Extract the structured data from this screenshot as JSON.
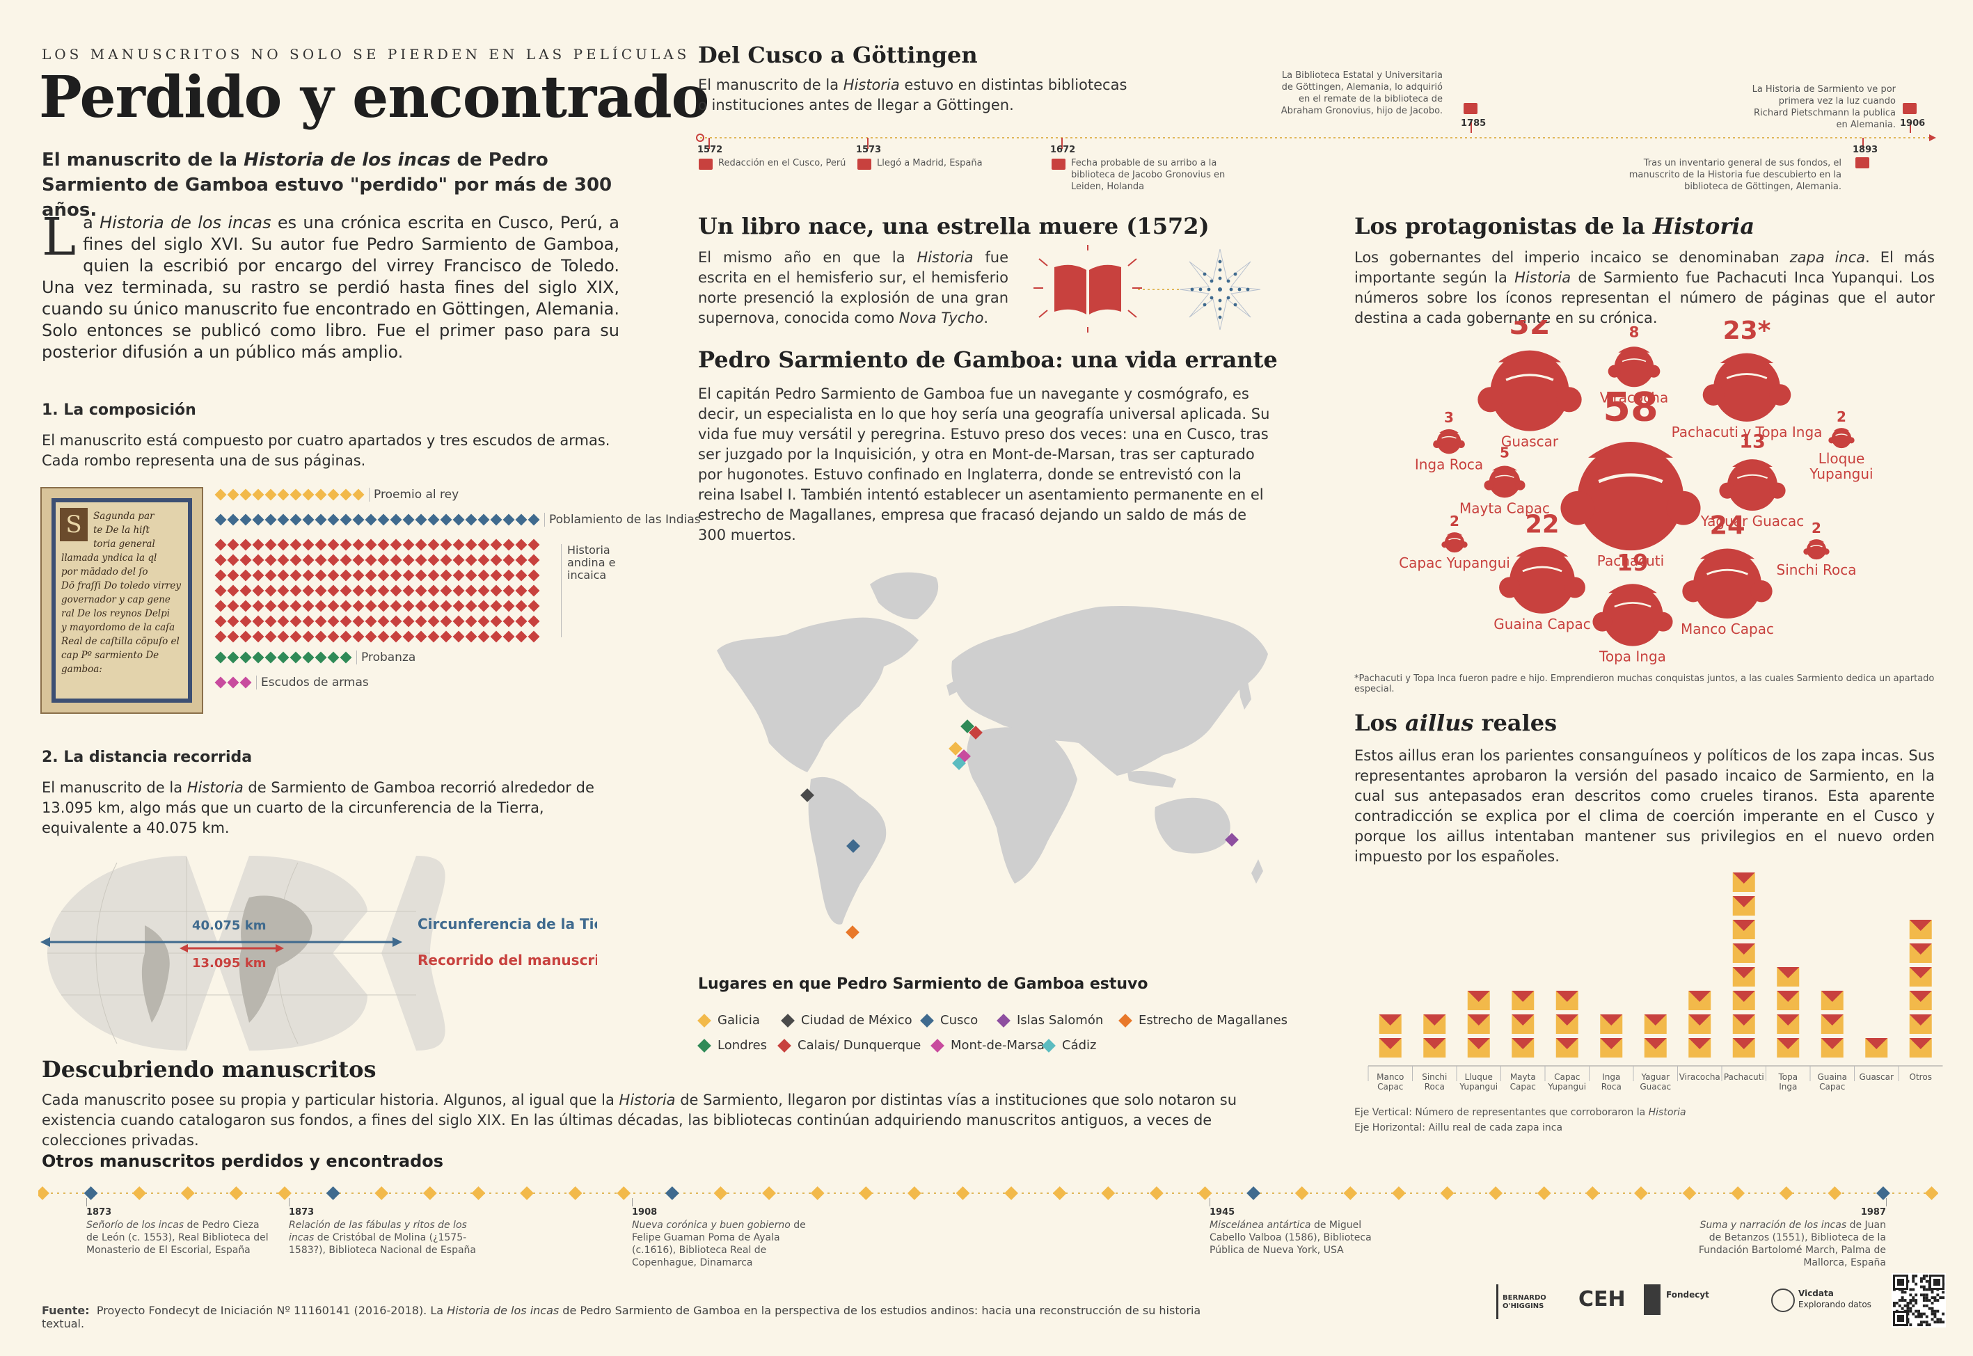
{
  "header": {
    "kicker": "LOS MANUSCRITOS NO SOLO SE PIERDEN EN LAS PELÍCULAS",
    "title": "Perdido y encontrado",
    "subtitle_a": "El manuscrito de la ",
    "subtitle_em": "Historia de los incas",
    "subtitle_b": " de Pedro Sarmiento de Gamboa estuvo \"perdido\" por más de 300 años."
  },
  "intro": {
    "dropcap": "L",
    "a": "a ",
    "em": "Historia de los incas",
    "b": " es una crónica escrita en Cusco, Perú, a fines del siglo XVI. Su autor fue Pedro Sarmiento de Gamboa, quien la escribió por encargo del virrey Francisco de Toledo. Una vez terminada, su rastro se perdió hasta fines del siglo XIX, cuando su único manuscrito fue encontrado en Göttingen, Alemania. Solo entonces se publicó como libro. Fue el primer paso para su posterior difusión a un público más amplio."
  },
  "composition": {
    "heading": "1. La composición",
    "text": "El manuscrito está compuesto por cuatro apartados y tres escudos de armas. Cada rombo representa una de sus páginas.",
    "manuscript_text": [
      "Sagunda par",
      "te De la hiſt",
      "toria general",
      "llamada yndica la ql",
      "por mādado del ſo",
      "Dō fraſſi Do toledo virrey",
      "governador y cap gene",
      "ral De los reynos Delpi",
      "y mayordomo de la caſa",
      "Real de caſtilla cōpuſo el",
      "cap Pº sarmiento De",
      "gamboa:"
    ],
    "rows": [
      {
        "label": "Proemio al rey",
        "count": 12,
        "color": "#f2b94a",
        "lines": 1
      },
      {
        "label": "Poblamiento de las Indias",
        "count": 26,
        "color": "#3f6a8e",
        "lines": 1
      },
      {
        "label": "Historia andina e incaica",
        "count": 184,
        "color": "#c8413e",
        "lines": 7
      },
      {
        "label": "Probanza",
        "count": 11,
        "color": "#2f8a57",
        "lines": 1
      },
      {
        "label": "Escudos de armas",
        "count": 3,
        "color": "#c84b9e",
        "lines": 1
      }
    ]
  },
  "distance": {
    "heading": "2. La distancia recorrida",
    "text_a": "El manuscrito de la ",
    "text_em": "Historia",
    "text_b": " de Sarmiento de Gamboa recorrió alrededor de 13.095 km, algo más que un cuarto de la circunferencia de la Tierra, equivalente a 40.075 km.",
    "earth_km": "40.075 km",
    "ms_km": "13.095 km",
    "earth_label": "Circunferencia de la Tierra",
    "ms_label": "Recorrido del manuscrito",
    "earth_color": "#3f6a8e",
    "ms_color": "#c8413e"
  },
  "cusco": {
    "title": "Del Cusco a Göttingen",
    "text_a": "El manuscrito de la ",
    "text_em": "Historia",
    "text_b": " estuvo en distintas bibliotecas o instituciones antes de llegar a Göttingen.",
    "events": [
      {
        "year": "1572",
        "text": "Redacción en el Cusco, Perú"
      },
      {
        "year": "1573",
        "text": "Llegó a Madrid, España"
      },
      {
        "year": "1672",
        "text": "Fecha probable de su arribo a la biblioteca de Jacobo Gronovius en Leiden, Holanda"
      },
      {
        "year": "1785",
        "text": "La Biblioteca Estatal y Universitaria de Göttingen, Alemania, lo adquirió en el remate de la biblioteca de Abraham Gronovius, hijo de Jacobo."
      },
      {
        "year": "1893",
        "text": "Tras un inventario general de sus fondos, el manuscrito de la Historia fue descubierto en la biblioteca de Göttingen, Alemania."
      },
      {
        "year": "1906",
        "text": "La Historia de Sarmiento ve por primera vez la luz cuando Richard Pietschmann la publica en Alemania."
      }
    ]
  },
  "star": {
    "title": "Un libro nace, una estrella muere (1572)",
    "text_a": "El mismo año en que la ",
    "text_em": "Historia",
    "text_b": " fue escrita en el hemisferio sur, el hemisferio norte presenció la explosión de una gran supernova, conocida como ",
    "text_em2": "Nova Tycho",
    "text_c": "."
  },
  "life": {
    "title": "Pedro Sarmiento de Gamboa: una vida errante",
    "text": "El capitán Pedro Sarmiento de Gamboa fue un navegante y cosmógrafo, es decir, un especialista en lo que hoy sería una geografía universal aplicada. Su vida fue muy versátil y peregrina. Estuvo preso dos veces: una en Cusco, tras ser juzgado por la Inquisición, y otra en Mont-de-Marsan, tras ser capturado por hugonotes. Estuvo confinado en Inglaterra, donde se entrevistó con la reina Isabel I. También intentó establecer un asentamiento permanente en el estrecho de Magallanes, empresa que fracasó dejando un saldo de más de 300 muertos.",
    "legend_title": "Lugares en que Pedro Sarmiento de Gamboa estuvo",
    "places": [
      {
        "name": "Galicia",
        "color": "#f2b94a"
      },
      {
        "name": "Ciudad de México",
        "color": "#4a4a4a"
      },
      {
        "name": "Cusco",
        "color": "#3f6a8e"
      },
      {
        "name": "Islas Salomón",
        "color": "#8e4fa0"
      },
      {
        "name": "Estrecho de Magallanes",
        "color": "#e8782a"
      },
      {
        "name": "Londres",
        "color": "#2f8a57"
      },
      {
        "name": "Calais/ Dunquerque",
        "color": "#c8413e"
      },
      {
        "name": "Mont-de-Marsan",
        "color": "#c84b9e"
      },
      {
        "name": "Cádiz",
        "color": "#5bbcc0"
      }
    ]
  },
  "protagonists": {
    "title_a": "Los protagonistas de la ",
    "title_em": "Historia",
    "text_a": "Los gobernantes del imperio incaico se denominaban ",
    "text_em": "zapa inca",
    "text_b": ". El más importante según la ",
    "text_em2": "Historia",
    "text_c": " de Sarmiento fue Pachacuti Inca Yupanqui. Los números sobre los íconos representan el número de páginas que el autor destina a cada gobernante en su crónica.",
    "rulers": [
      {
        "name": "Guascar",
        "pages": "32"
      },
      {
        "name": "Viracocha",
        "pages": "8"
      },
      {
        "name": "Pachacuti y Topa Inga",
        "pages": "23*"
      },
      {
        "name": "Inga Roca",
        "pages": "3"
      },
      {
        "name": "Pachacuti",
        "pages": "58"
      },
      {
        "name": "Lloque Yupangui",
        "pages": "2"
      },
      {
        "name": "Mayta Capac",
        "pages": "5"
      },
      {
        "name": "Yaguar Guacac",
        "pages": "13"
      },
      {
        "name": "Capac Yupangui",
        "pages": "2"
      },
      {
        "name": "Guaina Capac",
        "pages": "22"
      },
      {
        "name": "Topa Inga",
        "pages": "19"
      },
      {
        "name": "Manco Capac",
        "pages": "24"
      },
      {
        "name": "Sinchi Roca",
        "pages": "2"
      }
    ],
    "note": "*Pachacuti y Topa Inca fueron padre e hijo. Emprendieron muchas conquistas juntos, a las cuales Sarmiento dedica un apartado especial."
  },
  "aillus": {
    "title_a": "Los ",
    "title_em": "aillus",
    "title_b": " reales",
    "text": "Estos aillus eran los parientes consanguíneos y políticos de los zapa incas. Sus representantes aprobaron la versión del pasado incaico de Sarmiento, en la cual sus antepasados eran descritos como crueles tiranos. Esta aparente contradicción se explica por el clima de coerción imperante en el Cusco y porque los aillus intentaban mantener sus privilegios en el nuevo orden impuesto por los españoles.",
    "axis_v_a": "Eje Vertical: Número de representantes que corroboraron la ",
    "axis_v_em": "Historia",
    "axis_h": "Eje Horizontal: Aillu real de cada zapa inca"
  },
  "chart_data": {
    "type": "bar",
    "categories": [
      "Manco Capac",
      "Sinchi Roca",
      "Lluque Yupangui",
      "Mayta Capac",
      "Capac Yupangui",
      "Inga Roca",
      "Yaguar Guacac",
      "Viracocha",
      "Pachacuti",
      "Topa Inga",
      "Guaina Capac",
      "Guascar",
      "Otros"
    ],
    "values": [
      2,
      2,
      3,
      3,
      3,
      2,
      2,
      3,
      8,
      4,
      3,
      1,
      6
    ],
    "xlabel": "Aillu real de cada zapa inca",
    "ylabel": "Número de representantes que corroboraron la Historia"
  },
  "discover": {
    "title": "Descubriendo manuscritos",
    "text_a": "Cada manuscrito posee su propia y particular historia. Algunos, al igual que la ",
    "text_em": "Historia",
    "text_b": " de Sarmiento, llegaron por distintas vías a instituciones que solo notaron su existencia cuando catalogaron sus fondos, a fines del siglo XIX. En las últimas décadas, las bibliotecas continúan adquiriendo manuscritos antiguos, a veces de colecciones privadas.",
    "others_title": "Otros manuscritos perdidos y encontrados",
    "items": [
      {
        "year": "1873",
        "title": "Señorío de los incas",
        "rest": " de Pedro Cieza de León (c. 1553), Real Biblioteca del Monasterio de El Escorial, España"
      },
      {
        "year": "1873",
        "title": "Relación de las fábulas y ritos de los incas",
        "rest": " de Cristóbal de Molina (¿1575-1583?), Biblioteca Nacional de España"
      },
      {
        "year": "1908",
        "title": "Nueva corónica y buen gobierno",
        "rest": " de Felipe Guaman Poma de Ayala (c.1616), Biblioteca Real de Copenhague, Dinamarca"
      },
      {
        "year": "1945",
        "title": "Miscelánea antártica",
        "rest": " de Miguel Cabello Valboa (1586), Biblioteca Pública de Nueva York, USA"
      },
      {
        "year": "1987",
        "title": "Suma y narración de los incas",
        "rest": " de Juan de Betanzos (1551), Biblioteca de la Fundación Bartolomé March, Palma de Mallorca, España"
      }
    ]
  },
  "footer": {
    "label": "Fuente:",
    "text_a": "Proyecto Fondecyt de Iniciación Nº 11160141 (2016-2018). La ",
    "text_em": "Historia de los incas",
    "text_b": " de Pedro Sarmiento de Gamboa en la perspectiva de los estudios andinos: hacia una reconstrucción de su historia textual.",
    "logos": [
      "BERNARDO O'HIGGINS",
      "CEH",
      "Fondecyt",
      "Vicdata",
      "Explorando datos"
    ]
  },
  "colors": {
    "red": "#c8413e",
    "yellow": "#f2b94a",
    "blue": "#3f6a8e",
    "green": "#2f8a57",
    "pink": "#c84b9e"
  }
}
